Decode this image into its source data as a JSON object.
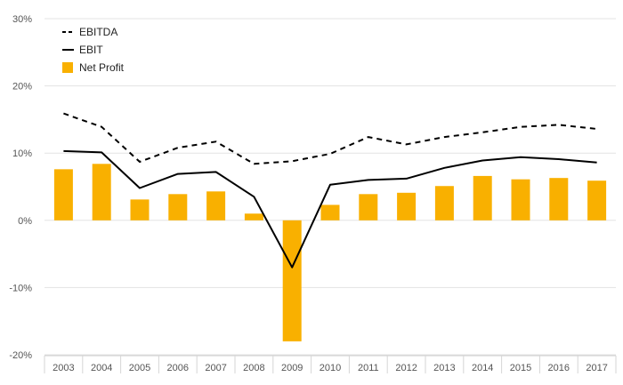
{
  "chart_data": {
    "type": "bar",
    "categories": [
      "2003",
      "2004",
      "2005",
      "2006",
      "2007",
      "2008",
      "2009",
      "2010",
      "2011",
      "2012",
      "2013",
      "2014",
      "2015",
      "2016",
      "2017"
    ],
    "ylim": [
      -20,
      30
    ],
    "yticks": [
      30,
      20,
      10,
      0,
      -10,
      -20
    ],
    "ytick_labels": [
      "30%",
      "20%",
      "10%",
      "0%",
      "-10%",
      "-20%"
    ],
    "grid": true,
    "legend_position": "top-left",
    "series": [
      {
        "name": "EBITDA",
        "kind": "line",
        "style": "dashed",
        "color": "#000000",
        "values": [
          15.9,
          13.9,
          8.7,
          10.8,
          11.7,
          8.4,
          8.8,
          9.9,
          12.4,
          11.3,
          12.4,
          13.1,
          13.9,
          14.2,
          13.6
        ]
      },
      {
        "name": "EBIT",
        "kind": "line",
        "style": "solid",
        "color": "#000000",
        "values": [
          10.3,
          10.1,
          4.8,
          6.9,
          7.2,
          3.5,
          -7.0,
          5.3,
          6.0,
          6.2,
          7.8,
          8.9,
          9.4,
          9.1,
          8.6
        ]
      },
      {
        "name": "Net Profit",
        "kind": "bar",
        "color": "#f9b000",
        "values": [
          7.6,
          8.4,
          3.1,
          3.9,
          4.3,
          1.0,
          -18.0,
          2.3,
          3.9,
          4.1,
          5.1,
          6.6,
          6.1,
          6.3,
          5.9
        ]
      }
    ]
  }
}
